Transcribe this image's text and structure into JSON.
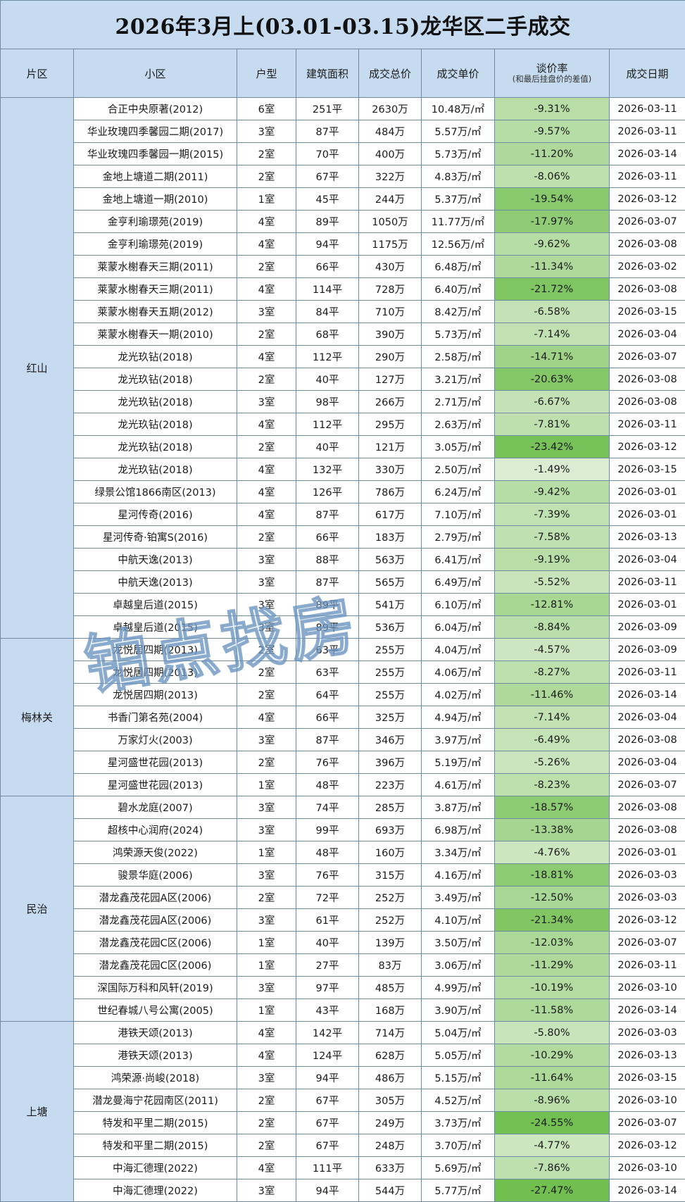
{
  "title": "2026年3月上(03.01-03.15)龙华区二手成交",
  "headers": {
    "district": "片区",
    "community": "小区",
    "layout": "户型",
    "area": "建筑面积",
    "total": "成交总价",
    "unit": "成交单价",
    "rate": "谈价率",
    "rate_note": "(和最后挂盘价的差值)",
    "date": "成交日期"
  },
  "watermark": "铂点找房",
  "colors": {
    "header_bg": "#c6dbef",
    "rate_light": "#e2efda",
    "rate_dark": "#70bf4f"
  },
  "groups": [
    {
      "district": "红山",
      "rows": [
        {
          "community": "合正中央原著(2012)",
          "layout": "6室",
          "area": "251平",
          "total": "2630万",
          "unit": "10.48万/㎡",
          "rate": "-9.31%",
          "date": "2026-03-11"
        },
        {
          "community": "华业玫瑰四季馨园二期(2017)",
          "layout": "3室",
          "area": "87平",
          "total": "484万",
          "unit": "5.57万/㎡",
          "rate": "-9.57%",
          "date": "2026-03-11"
        },
        {
          "community": "华业玫瑰四季馨园一期(2015)",
          "layout": "2室",
          "area": "70平",
          "total": "400万",
          "unit": "5.73万/㎡",
          "rate": "-11.20%",
          "date": "2026-03-14"
        },
        {
          "community": "金地上塘道二期(2011)",
          "layout": "2室",
          "area": "67平",
          "total": "322万",
          "unit": "4.83万/㎡",
          "rate": "-8.06%",
          "date": "2026-03-11"
        },
        {
          "community": "金地上塘道一期(2010)",
          "layout": "1室",
          "area": "45平",
          "total": "244万",
          "unit": "5.37万/㎡",
          "rate": "-19.54%",
          "date": "2026-03-12"
        },
        {
          "community": "金亨利瑜璟苑(2019)",
          "layout": "4室",
          "area": "89平",
          "total": "1050万",
          "unit": "11.77万/㎡",
          "rate": "-17.97%",
          "date": "2026-03-07"
        },
        {
          "community": "金亨利瑜璟苑(2019)",
          "layout": "4室",
          "area": "94平",
          "total": "1175万",
          "unit": "12.56万/㎡",
          "rate": "-9.62%",
          "date": "2026-03-08"
        },
        {
          "community": "莱蒙水榭春天三期(2011)",
          "layout": "2室",
          "area": "66平",
          "total": "430万",
          "unit": "6.48万/㎡",
          "rate": "-11.34%",
          "date": "2026-03-02"
        },
        {
          "community": "莱蒙水榭春天三期(2011)",
          "layout": "4室",
          "area": "114平",
          "total": "728万",
          "unit": "6.40万/㎡",
          "rate": "-21.72%",
          "date": "2026-03-08"
        },
        {
          "community": "莱蒙水榭春天五期(2012)",
          "layout": "3室",
          "area": "84平",
          "total": "710万",
          "unit": "8.42万/㎡",
          "rate": "-6.58%",
          "date": "2026-03-15"
        },
        {
          "community": "莱蒙水榭春天一期(2010)",
          "layout": "2室",
          "area": "68平",
          "total": "390万",
          "unit": "5.73万/㎡",
          "rate": "-7.14%",
          "date": "2026-03-04"
        },
        {
          "community": "龙光玖钻(2018)",
          "layout": "4室",
          "area": "112平",
          "total": "290万",
          "unit": "2.58万/㎡",
          "rate": "-14.71%",
          "date": "2026-03-07"
        },
        {
          "community": "龙光玖钻(2018)",
          "layout": "2室",
          "area": "40平",
          "total": "127万",
          "unit": "3.21万/㎡",
          "rate": "-20.63%",
          "date": "2026-03-08"
        },
        {
          "community": "龙光玖钻(2018)",
          "layout": "3室",
          "area": "98平",
          "total": "266万",
          "unit": "2.71万/㎡",
          "rate": "-6.67%",
          "date": "2026-03-08"
        },
        {
          "community": "龙光玖钻(2018)",
          "layout": "4室",
          "area": "112平",
          "total": "295万",
          "unit": "2.63万/㎡",
          "rate": "-7.81%",
          "date": "2026-03-11"
        },
        {
          "community": "龙光玖钻(2018)",
          "layout": "2室",
          "area": "40平",
          "total": "121万",
          "unit": "3.05万/㎡",
          "rate": "-23.42%",
          "date": "2026-03-12"
        },
        {
          "community": "龙光玖钻(2018)",
          "layout": "4室",
          "area": "132平",
          "total": "330万",
          "unit": "2.50万/㎡",
          "rate": "-1.49%",
          "date": "2026-03-15"
        },
        {
          "community": "绿景公馆1866南区(2013)",
          "layout": "4室",
          "area": "126平",
          "total": "786万",
          "unit": "6.24万/㎡",
          "rate": "-9.42%",
          "date": "2026-03-01"
        },
        {
          "community": "星河传奇(2016)",
          "layout": "4室",
          "area": "87平",
          "total": "617万",
          "unit": "7.10万/㎡",
          "rate": "-7.39%",
          "date": "2026-03-01"
        },
        {
          "community": "星河传奇·铂寓S(2016)",
          "layout": "2室",
          "area": "66平",
          "total": "183万",
          "unit": "2.79万/㎡",
          "rate": "-7.58%",
          "date": "2026-03-13"
        },
        {
          "community": "中航天逸(2013)",
          "layout": "3室",
          "area": "88平",
          "total": "563万",
          "unit": "6.41万/㎡",
          "rate": "-9.19%",
          "date": "2026-03-04"
        },
        {
          "community": "中航天逸(2013)",
          "layout": "3室",
          "area": "87平",
          "total": "565万",
          "unit": "6.49万/㎡",
          "rate": "-5.52%",
          "date": "2026-03-11"
        },
        {
          "community": "卓越皇后道(2015)",
          "layout": "3室",
          "area": "89平",
          "total": "541万",
          "unit": "6.10万/㎡",
          "rate": "-12.81%",
          "date": "2026-03-01"
        },
        {
          "community": "卓越皇后道(2015)",
          "layout": "3室",
          "area": "89平",
          "total": "536万",
          "unit": "6.04万/㎡",
          "rate": "-8.84%",
          "date": "2026-03-09"
        }
      ]
    },
    {
      "district": "梅林关",
      "rows": [
        {
          "community": "龙悦居四期(2013)",
          "layout": "2室",
          "area": "63平",
          "total": "255万",
          "unit": "4.04万/㎡",
          "rate": "-4.57%",
          "date": "2026-03-09"
        },
        {
          "community": "龙悦居四期(2013)",
          "layout": "2室",
          "area": "63平",
          "total": "255万",
          "unit": "4.06万/㎡",
          "rate": "-8.27%",
          "date": "2026-03-11"
        },
        {
          "community": "龙悦居四期(2013)",
          "layout": "2室",
          "area": "64平",
          "total": "255万",
          "unit": "4.02万/㎡",
          "rate": "-11.46%",
          "date": "2026-03-14"
        },
        {
          "community": "书香门第名苑(2004)",
          "layout": "4室",
          "area": "66平",
          "total": "325万",
          "unit": "4.94万/㎡",
          "rate": "-7.14%",
          "date": "2026-03-04"
        },
        {
          "community": "万家灯火(2003)",
          "layout": "3室",
          "area": "87平",
          "total": "346万",
          "unit": "3.97万/㎡",
          "rate": "-6.49%",
          "date": "2026-03-08"
        },
        {
          "community": "星河盛世花园(2013)",
          "layout": "2室",
          "area": "76平",
          "total": "396万",
          "unit": "5.19万/㎡",
          "rate": "-5.26%",
          "date": "2026-03-04"
        },
        {
          "community": "星河盛世花园(2013)",
          "layout": "1室",
          "area": "48平",
          "total": "223万",
          "unit": "4.61万/㎡",
          "rate": "-8.23%",
          "date": "2026-03-07"
        }
      ]
    },
    {
      "district": "民治",
      "rows": [
        {
          "community": "碧水龙庭(2007)",
          "layout": "3室",
          "area": "74平",
          "total": "285万",
          "unit": "3.87万/㎡",
          "rate": "-18.57%",
          "date": "2026-03-08"
        },
        {
          "community": "超核中心润府(2024)",
          "layout": "3室",
          "area": "99平",
          "total": "693万",
          "unit": "6.98万/㎡",
          "rate": "-13.38%",
          "date": "2026-03-08"
        },
        {
          "community": "鸿荣源天俊(2022)",
          "layout": "1室",
          "area": "48平",
          "total": "160万",
          "unit": "3.34万/㎡",
          "rate": "-4.76%",
          "date": "2026-03-01"
        },
        {
          "community": "骏景华庭(2006)",
          "layout": "3室",
          "area": "76平",
          "total": "315万",
          "unit": "4.16万/㎡",
          "rate": "-18.81%",
          "date": "2026-03-03"
        },
        {
          "community": "潜龙鑫茂花园A区(2006)",
          "layout": "2室",
          "area": "72平",
          "total": "252万",
          "unit": "3.49万/㎡",
          "rate": "-12.50%",
          "date": "2026-03-03"
        },
        {
          "community": "潜龙鑫茂花园A区(2006)",
          "layout": "3室",
          "area": "61平",
          "total": "252万",
          "unit": "4.10万/㎡",
          "rate": "-21.34%",
          "date": "2026-03-12"
        },
        {
          "community": "潜龙鑫茂花园C区(2006)",
          "layout": "1室",
          "area": "40平",
          "total": "139万",
          "unit": "3.50万/㎡",
          "rate": "-12.03%",
          "date": "2026-03-07"
        },
        {
          "community": "潜龙鑫茂花园C区(2006)",
          "layout": "1室",
          "area": "27平",
          "total": "83万",
          "unit": "3.06万/㎡",
          "rate": "-11.29%",
          "date": "2026-03-11"
        },
        {
          "community": "深国际万科和风轩(2019)",
          "layout": "3室",
          "area": "97平",
          "total": "485万",
          "unit": "4.99万/㎡",
          "rate": "-10.19%",
          "date": "2026-03-10"
        },
        {
          "community": "世纪春城八号公寓(2005)",
          "layout": "1室",
          "area": "43平",
          "total": "168万",
          "unit": "3.90万/㎡",
          "rate": "-11.58%",
          "date": "2026-03-14"
        }
      ]
    },
    {
      "district": "上塘",
      "rows": [
        {
          "community": "港铁天颂(2013)",
          "layout": "4室",
          "area": "142平",
          "total": "714万",
          "unit": "5.04万/㎡",
          "rate": "-5.80%",
          "date": "2026-03-03"
        },
        {
          "community": "港铁天颂(2013)",
          "layout": "4室",
          "area": "124平",
          "total": "628万",
          "unit": "5.05万/㎡",
          "rate": "-10.29%",
          "date": "2026-03-13"
        },
        {
          "community": "鸿荣源·尚峻(2018)",
          "layout": "3室",
          "area": "94平",
          "total": "486万",
          "unit": "5.15万/㎡",
          "rate": "-11.64%",
          "date": "2026-03-15"
        },
        {
          "community": "潜龙曼海宁花园南区(2011)",
          "layout": "2室",
          "area": "67平",
          "total": "305万",
          "unit": "4.52万/㎡",
          "rate": "-8.96%",
          "date": "2026-03-10"
        },
        {
          "community": "特发和平里二期(2015)",
          "layout": "2室",
          "area": "67平",
          "total": "249万",
          "unit": "3.73万/㎡",
          "rate": "-24.55%",
          "date": "2026-03-07"
        },
        {
          "community": "特发和平里二期(2015)",
          "layout": "2室",
          "area": "67平",
          "total": "248万",
          "unit": "3.70万/㎡",
          "rate": "-4.77%",
          "date": "2026-03-12"
        },
        {
          "community": "中海汇德理(2022)",
          "layout": "4室",
          "area": "111平",
          "total": "633万",
          "unit": "5.69万/㎡",
          "rate": "-7.86%",
          "date": "2026-03-10"
        },
        {
          "community": "中海汇德理(2022)",
          "layout": "3室",
          "area": "94平",
          "total": "544万",
          "unit": "5.77万/㎡",
          "rate": "-27.47%",
          "date": "2026-03-14"
        }
      ]
    }
  ]
}
